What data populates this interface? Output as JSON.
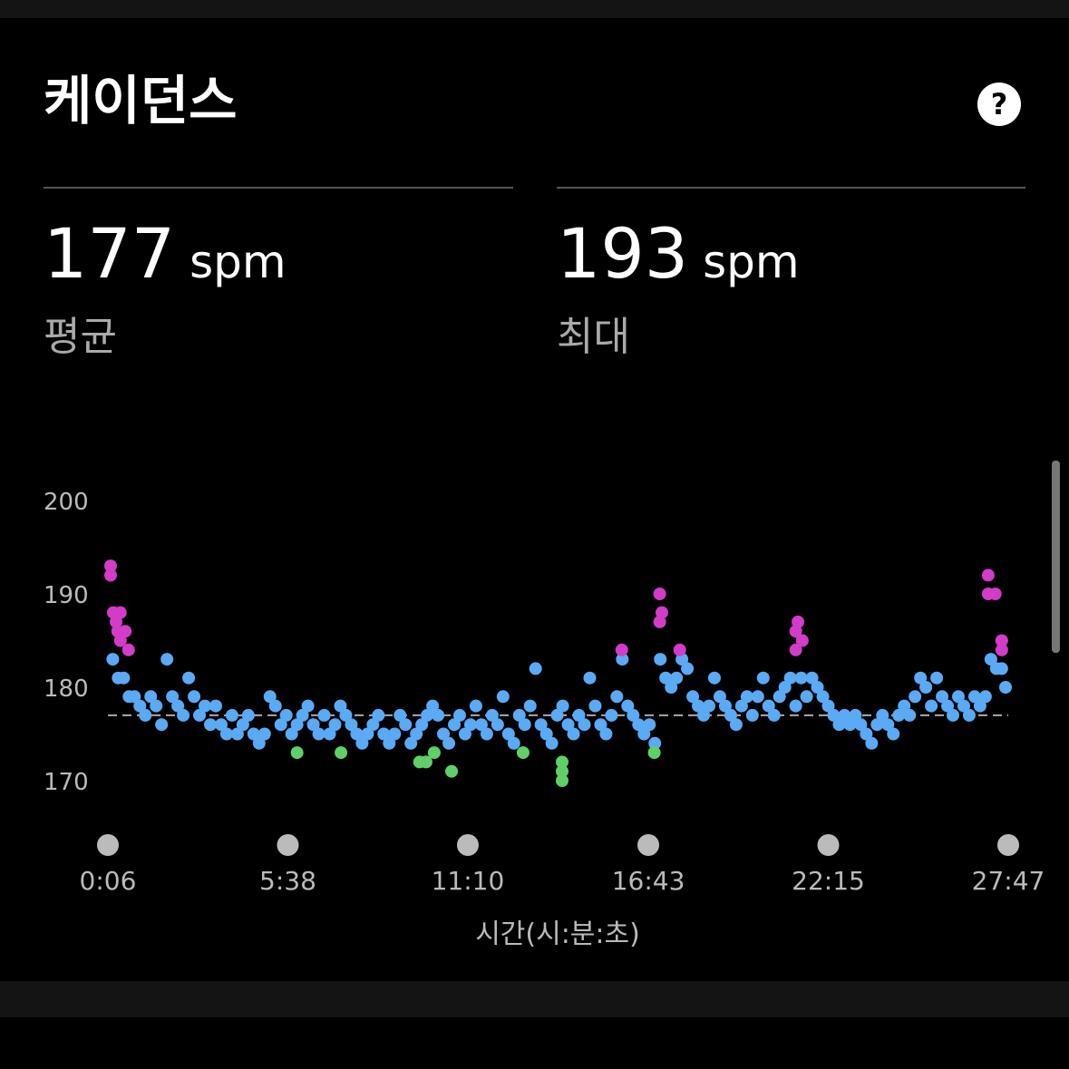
{
  "header": {
    "title": "케이던스",
    "help": "?"
  },
  "stats": [
    {
      "value": 177,
      "unit": "spm",
      "label": "평균"
    },
    {
      "value": 193,
      "unit": "spm",
      "label": "최대"
    }
  ],
  "chart_data": {
    "type": "scatter",
    "x_label": "시간(시:분:초)",
    "xlim": [
      6,
      1667
    ],
    "ylim": [
      166,
      202
    ],
    "xticks": [
      {
        "value": 6,
        "label": "0:06"
      },
      {
        "value": 338,
        "label": "5:38"
      },
      {
        "value": 670,
        "label": "11:10"
      },
      {
        "value": 1003,
        "label": "16:43"
      },
      {
        "value": 1335,
        "label": "22:15"
      },
      {
        "value": 1667,
        "label": "27:47"
      }
    ],
    "yticks": [
      170,
      180,
      190,
      200
    ],
    "grid": false,
    "series": [
      {
        "color": "#5aaaf5",
        "x": [
          15,
          25,
          35,
          45,
          55,
          65,
          75,
          85,
          95,
          105,
          115,
          125,
          135,
          145,
          155,
          165,
          175,
          185,
          195,
          205,
          215,
          225,
          235,
          245,
          255,
          265,
          275,
          285,
          295,
          305,
          315,
          325,
          335,
          345,
          355,
          365,
          375,
          385,
          395,
          405,
          415,
          425,
          435,
          445,
          455,
          465,
          475,
          485,
          495,
          505,
          515,
          525,
          535,
          545,
          555,
          565,
          575,
          585,
          595,
          605,
          615,
          625,
          635,
          645,
          655,
          665,
          675,
          685,
          695,
          705,
          715,
          725,
          735,
          745,
          755,
          765,
          775,
          785,
          795,
          805,
          815,
          825,
          835,
          845,
          855,
          865,
          875,
          885,
          895,
          905,
          915,
          925,
          935,
          945,
          955,
          965,
          975,
          985,
          995,
          1005,
          1015,
          1025,
          1035,
          1045,
          1055,
          1065,
          1075,
          1085,
          1095,
          1105,
          1115,
          1125,
          1135,
          1145,
          1155,
          1165,
          1175,
          1185,
          1195,
          1205,
          1215,
          1225,
          1235,
          1245,
          1255,
          1265,
          1275,
          1285,
          1295,
          1305,
          1315,
          1325,
          1335,
          1345,
          1355,
          1365,
          1375,
          1385,
          1395,
          1405,
          1415,
          1425,
          1435,
          1445,
          1455,
          1465,
          1475,
          1485,
          1495,
          1505,
          1515,
          1525,
          1535,
          1545,
          1555,
          1565,
          1575,
          1585,
          1595,
          1605,
          1615,
          1625,
          1635,
          1645,
          1655,
          1662
        ],
        "values": [
          183,
          181,
          181,
          179,
          179,
          178,
          177,
          179,
          178,
          176,
          183,
          179,
          178,
          177,
          181,
          179,
          177,
          178,
          176,
          178,
          176,
          175,
          177,
          175,
          176,
          177,
          175,
          174,
          175,
          179,
          178,
          176,
          177,
          175,
          176,
          177,
          178,
          176,
          175,
          177,
          175,
          176,
          178,
          177,
          176,
          175,
          174,
          175,
          176,
          177,
          175,
          174,
          175,
          177,
          176,
          174,
          175,
          176,
          177,
          178,
          177,
          175,
          174,
          176,
          177,
          175,
          176,
          178,
          176,
          175,
          177,
          176,
          179,
          175,
          174,
          177,
          176,
          178,
          182,
          176,
          175,
          174,
          177,
          178,
          176,
          175,
          177,
          176,
          181,
          178,
          176,
          175,
          177,
          179,
          183,
          178,
          177,
          176,
          175,
          176,
          174,
          183,
          181,
          180,
          181,
          183,
          182,
          179,
          178,
          177,
          178,
          181,
          179,
          178,
          177,
          176,
          178,
          179,
          177,
          179,
          181,
          178,
          177,
          179,
          180,
          181,
          178,
          181,
          179,
          181,
          180,
          179,
          178,
          177,
          176,
          177,
          176,
          177,
          176,
          175,
          174,
          176,
          177,
          176,
          175,
          177,
          178,
          177,
          179,
          181,
          180,
          178,
          181,
          179,
          178,
          177,
          179,
          178,
          177,
          179,
          178,
          179,
          183,
          182,
          182,
          180
        ]
      },
      {
        "color": "#5fd068",
        "x": [
          355,
          436,
          581,
          593,
          608,
          640,
          772,
          844,
          844,
          844,
          1014
        ],
        "values": [
          173,
          173,
          172,
          172,
          173,
          171,
          173,
          172,
          171,
          170,
          173
        ]
      },
      {
        "color": "#d23cc8",
        "x": [
          11,
          11,
          16,
          29,
          21,
          38,
          24,
          29,
          44,
          954,
          1024,
          1028,
          1024,
          1061,
          1279,
          1275,
          1287,
          1275,
          1630,
          1630,
          1643,
          1655,
          1655
        ],
        "values": [
          193,
          192,
          188,
          188,
          187,
          186,
          186,
          185,
          184,
          184,
          190,
          188,
          187,
          184,
          187,
          186,
          185,
          184,
          192,
          190,
          190,
          185,
          184
        ]
      }
    ]
  }
}
